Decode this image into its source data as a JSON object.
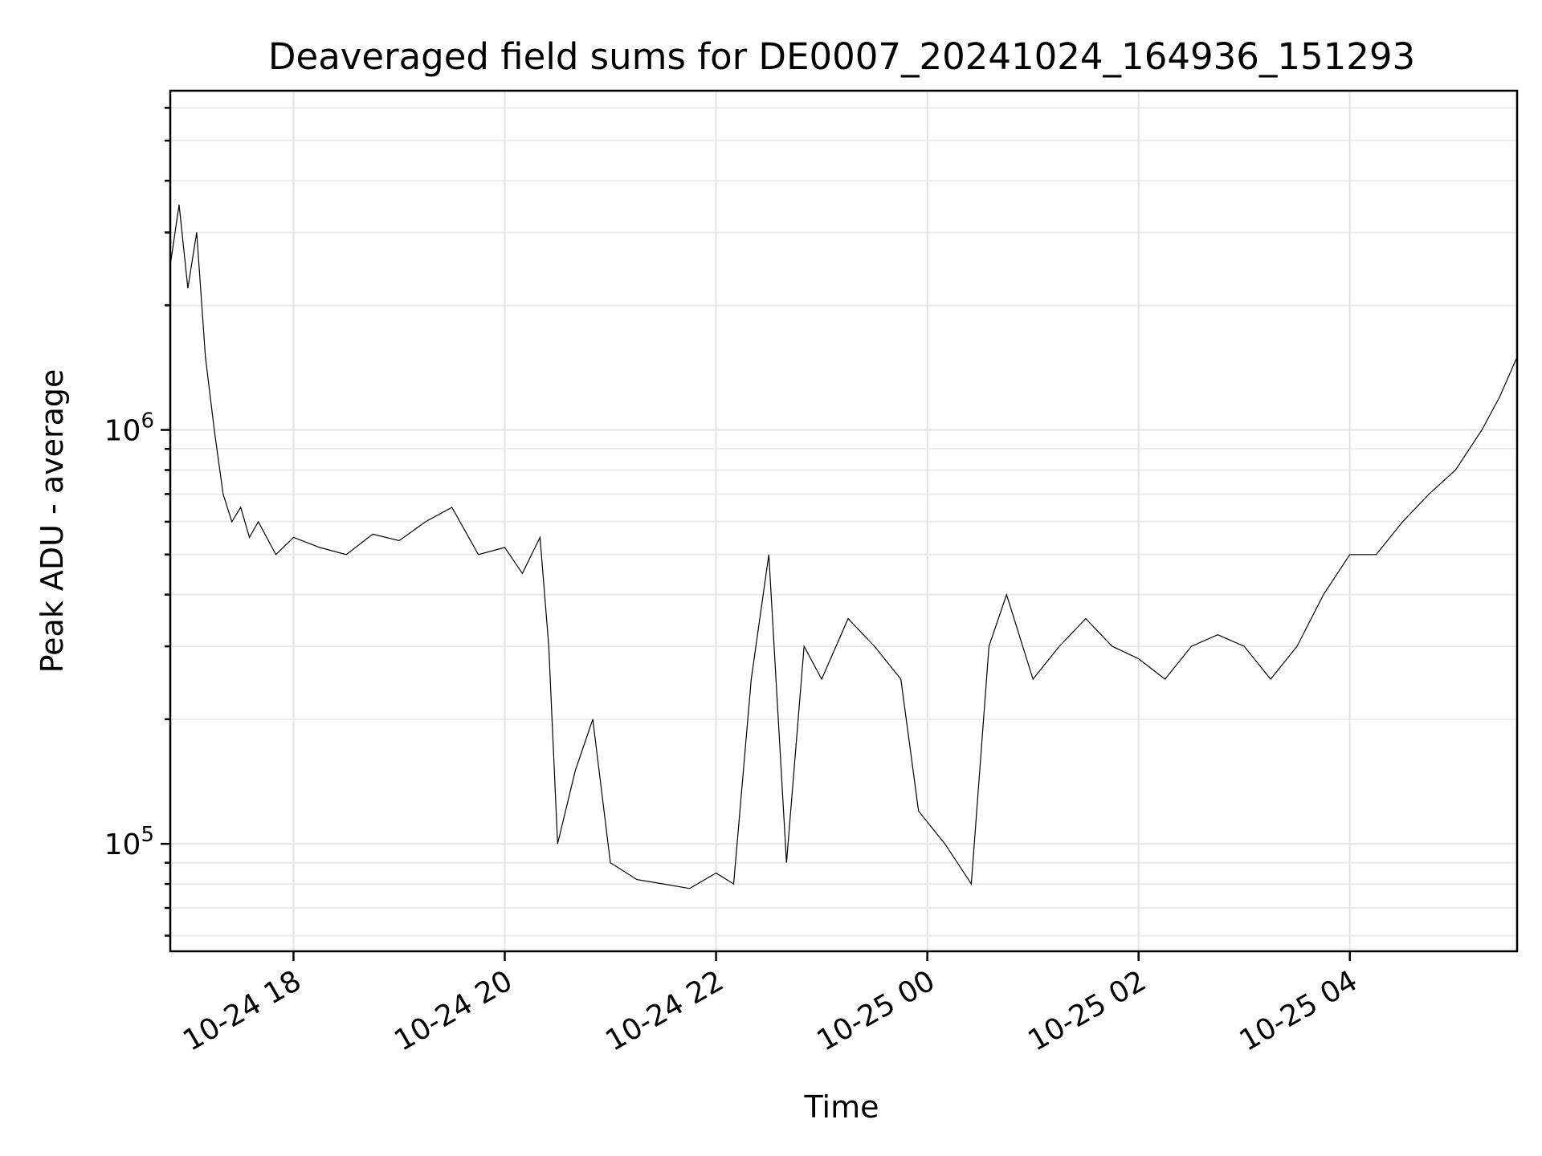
{
  "chart_data": {
    "type": "line",
    "title": "Deaveraged field sums for DE0007_20241024_164936_151293",
    "xlabel": "Time",
    "ylabel": "Peak ADU - average",
    "y_scale": "log",
    "ylim": [
      55000,
      6600000
    ],
    "xlim": [
      "2024-10-24 16:50",
      "2024-10-25 05:35"
    ],
    "grid": true,
    "legend": "none",
    "x_ticks": [
      {
        "x": "2024-10-24 18:00",
        "label": "10-24 18"
      },
      {
        "x": "2024-10-24 20:00",
        "label": "10-24 20"
      },
      {
        "x": "2024-10-24 22:00",
        "label": "10-24 22"
      },
      {
        "x": "2024-10-25 00:00",
        "label": "10-25 00"
      },
      {
        "x": "2024-10-25 02:00",
        "label": "10-25 02"
      },
      {
        "x": "2024-10-25 04:00",
        "label": "10-25 04"
      }
    ],
    "y_ticks": [
      {
        "y": 100000,
        "base": "10",
        "exp": "5"
      },
      {
        "y": 1000000,
        "base": "10",
        "exp": "6"
      }
    ],
    "line_color": "#000000",
    "series": [
      {
        "points": [
          [
            "2024-10-24 16:50",
            2500000
          ],
          [
            "2024-10-24 16:55",
            3500000
          ],
          [
            "2024-10-24 17:00",
            2200000
          ],
          [
            "2024-10-24 17:05",
            3000000
          ],
          [
            "2024-10-24 17:10",
            1500000
          ],
          [
            "2024-10-24 17:15",
            1000000
          ],
          [
            "2024-10-24 17:20",
            700000
          ],
          [
            "2024-10-24 17:25",
            600000
          ],
          [
            "2024-10-24 17:30",
            650000
          ],
          [
            "2024-10-24 17:35",
            550000
          ],
          [
            "2024-10-24 17:40",
            600000
          ],
          [
            "2024-10-24 17:50",
            500000
          ],
          [
            "2024-10-24 18:00",
            550000
          ],
          [
            "2024-10-24 18:15",
            520000
          ],
          [
            "2024-10-24 18:30",
            500000
          ],
          [
            "2024-10-24 18:45",
            560000
          ],
          [
            "2024-10-24 19:00",
            540000
          ],
          [
            "2024-10-24 19:15",
            600000
          ],
          [
            "2024-10-24 19:30",
            650000
          ],
          [
            "2024-10-24 19:45",
            500000
          ],
          [
            "2024-10-24 20:00",
            520000
          ],
          [
            "2024-10-24 20:10",
            450000
          ],
          [
            "2024-10-24 20:20",
            550000
          ],
          [
            "2024-10-24 20:25",
            300000
          ],
          [
            "2024-10-24 20:30",
            100000
          ],
          [
            "2024-10-24 20:40",
            150000
          ],
          [
            "2024-10-24 20:50",
            200000
          ],
          [
            "2024-10-24 21:00",
            90000
          ],
          [
            "2024-10-24 21:15",
            82000
          ],
          [
            "2024-10-24 21:30",
            80000
          ],
          [
            "2024-10-24 21:45",
            78000
          ],
          [
            "2024-10-24 22:00",
            85000
          ],
          [
            "2024-10-24 22:10",
            80000
          ],
          [
            "2024-10-24 22:20",
            250000
          ],
          [
            "2024-10-24 22:30",
            500000
          ],
          [
            "2024-10-24 22:40",
            90000
          ],
          [
            "2024-10-24 22:50",
            300000
          ],
          [
            "2024-10-24 23:00",
            250000
          ],
          [
            "2024-10-24 23:15",
            350000
          ],
          [
            "2024-10-24 23:30",
            300000
          ],
          [
            "2024-10-24 23:45",
            250000
          ],
          [
            "2024-10-24 23:55",
            120000
          ],
          [
            "2024-10-25 00:10",
            100000
          ],
          [
            "2024-10-25 00:25",
            80000
          ],
          [
            "2024-10-25 00:35",
            300000
          ],
          [
            "2024-10-25 00:45",
            400000
          ],
          [
            "2024-10-25 01:00",
            250000
          ],
          [
            "2024-10-25 01:15",
            300000
          ],
          [
            "2024-10-25 01:30",
            350000
          ],
          [
            "2024-10-25 01:45",
            300000
          ],
          [
            "2024-10-25 02:00",
            280000
          ],
          [
            "2024-10-25 02:15",
            250000
          ],
          [
            "2024-10-25 02:30",
            300000
          ],
          [
            "2024-10-25 02:45",
            320000
          ],
          [
            "2024-10-25 03:00",
            300000
          ],
          [
            "2024-10-25 03:15",
            250000
          ],
          [
            "2024-10-25 03:30",
            300000
          ],
          [
            "2024-10-25 03:45",
            400000
          ],
          [
            "2024-10-25 04:00",
            500000
          ],
          [
            "2024-10-25 04:15",
            500000
          ],
          [
            "2024-10-25 04:30",
            600000
          ],
          [
            "2024-10-25 04:45",
            700000
          ],
          [
            "2024-10-25 05:00",
            800000
          ],
          [
            "2024-10-25 05:15",
            1000000
          ],
          [
            "2024-10-25 05:25",
            1200000
          ],
          [
            "2024-10-25 05:35",
            1500000
          ]
        ]
      }
    ]
  }
}
